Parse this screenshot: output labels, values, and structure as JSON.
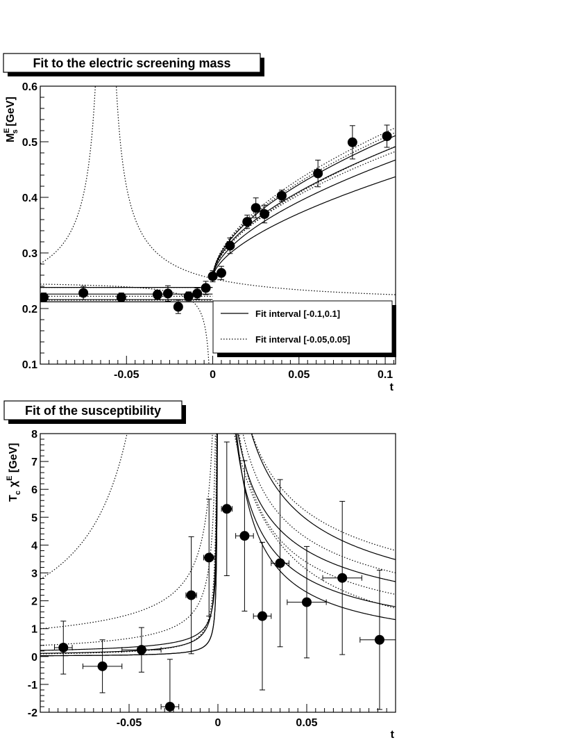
{
  "chart_data": [
    {
      "type": "scatter",
      "title": "Fit to the electric screening mass",
      "xlabel": "t",
      "ylabel_main": "M",
      "ylabel_sup": "E",
      "ylabel_sub": "s",
      "ylabel_rest": " [GeV]",
      "xlim": [
        -0.1,
        0.106
      ],
      "ylim": [
        0.1,
        0.6
      ],
      "xticks": [
        -0.05,
        0,
        0.05,
        0.1
      ],
      "xtick_labels": [
        "-0.05",
        "0",
        "0.05",
        "0.1"
      ],
      "yticks": [
        0.1,
        0.2,
        0.3,
        0.4,
        0.5,
        0.6
      ],
      "ytick_labels": [
        "0.1",
        "0.2",
        "0.3",
        "0.4",
        "0.5",
        "0.6"
      ],
      "legend_position": "bottom-right",
      "legend": [
        {
          "label": "Fit interval [-0.1,0.1]",
          "style": "solid"
        },
        {
          "label": "Fit interval [-0.05,0.05]",
          "style": "dotted"
        }
      ],
      "points": [
        {
          "x": -0.098,
          "y": 0.22,
          "yerr": 0.008,
          "xerr": 0
        },
        {
          "x": -0.075,
          "y": 0.228,
          "yerr": 0.012,
          "xerr": 0
        },
        {
          "x": -0.053,
          "y": 0.22,
          "yerr": 0.008,
          "xerr": 0
        },
        {
          "x": -0.032,
          "y": 0.225,
          "yerr": 0.008,
          "xerr": 0
        },
        {
          "x": -0.026,
          "y": 0.227,
          "yerr": 0.014,
          "xerr": 0
        },
        {
          "x": -0.02,
          "y": 0.203,
          "yerr": 0.012,
          "xerr": 0
        },
        {
          "x": -0.014,
          "y": 0.222,
          "yerr": 0.008,
          "xerr": 0
        },
        {
          "x": -0.009,
          "y": 0.227,
          "yerr": 0.01,
          "xerr": 0
        },
        {
          "x": -0.004,
          "y": 0.237,
          "yerr": 0.012,
          "xerr": 0
        },
        {
          "x": 0.0,
          "y": 0.258,
          "yerr": 0.01,
          "xerr": 0
        },
        {
          "x": 0.005,
          "y": 0.264,
          "yerr": 0.012,
          "xerr": 0
        },
        {
          "x": 0.01,
          "y": 0.313,
          "yerr": 0.014,
          "xerr": 0
        },
        {
          "x": 0.02,
          "y": 0.356,
          "yerr": 0.012,
          "xerr": 0
        },
        {
          "x": 0.025,
          "y": 0.381,
          "yerr": 0.018,
          "xerr": 0
        },
        {
          "x": 0.03,
          "y": 0.37,
          "yerr": 0.016,
          "xerr": 0
        },
        {
          "x": 0.04,
          "y": 0.403,
          "yerr": 0.01,
          "xerr": 0
        },
        {
          "x": 0.061,
          "y": 0.443,
          "yerr": 0.024,
          "xerr": 0
        },
        {
          "x": 0.081,
          "y": 0.499,
          "yerr": 0.03,
          "xerr": 0
        },
        {
          "x": 0.101,
          "y": 0.51,
          "yerr": 0.02,
          "xerr": 0
        }
      ],
      "curves": [
        {
          "style": "solid",
          "tc": 0.0,
          "left": [
            0.238,
            0.0,
            1.0
          ],
          "right": [
            0.255,
            0.9,
            0.56
          ]
        },
        {
          "style": "solid",
          "tc": 0.0,
          "left": [
            0.216,
            0.0,
            1.0
          ],
          "right": [
            0.255,
            0.83,
            0.56
          ]
        },
        {
          "style": "solid",
          "tc": 0.0,
          "left": [
            0.226,
            0.0,
            1.0
          ],
          "right": [
            0.255,
            0.78,
            0.58
          ]
        },
        {
          "style": "solid",
          "tc": 0.0,
          "left": [
            0.212,
            0.0,
            1.0
          ],
          "right": [
            0.255,
            0.7,
            0.6
          ]
        },
        {
          "style": "dotted",
          "tc": 0.0,
          "left": [
            0.238,
            0.0,
            1.0
          ],
          "right": [
            0.255,
            0.95,
            0.56
          ]
        },
        {
          "style": "dotted",
          "tc": 0.0,
          "left": [
            0.222,
            0.0,
            1.0
          ],
          "right": [
            0.255,
            0.92,
            0.56
          ]
        },
        {
          "style": "dotted",
          "tc": 0.0,
          "left": [
            0.215,
            0.0,
            1.0
          ],
          "right": [
            0.255,
            0.87,
            0.58
          ]
        },
        {
          "style": "dotted",
          "tc": 0.0,
          "left": [
            0.25,
            -0.00089,
            -0.84
          ],
          "right": [
            0.255,
            0.8,
            0.56
          ]
        },
        {
          "style": "dotted",
          "tc": -0.062,
          "left": [
            0.205,
            0.004,
            -0.9
          ],
          "right": [
            0.205,
            0.004,
            -0.9
          ]
        }
      ]
    },
    {
      "type": "scatter",
      "title": "Fit of the susceptibility",
      "xlabel": "t",
      "ylabel_main": "T",
      "ylabel_sub": "c",
      "ylabel_chi": "χ",
      "ylabel_sup": "E",
      "ylabel_rest": " [GeV]",
      "xlim": [
        -0.1,
        0.1
      ],
      "ylim": [
        -2,
        8
      ],
      "xticks": [
        -0.05,
        0,
        0.05
      ],
      "xtick_labels": [
        "-0.05",
        "0",
        "0.05"
      ],
      "yticks": [
        -2,
        -1,
        0,
        1,
        2,
        3,
        4,
        5,
        6,
        7,
        8
      ],
      "ytick_labels": [
        "-2",
        "-1",
        "0",
        "1",
        "2",
        "3",
        "4",
        "5",
        "6",
        "7",
        "8"
      ],
      "points": [
        {
          "x": -0.087,
          "y": 0.32,
          "yerr": 0.95,
          "xerr": 0.005
        },
        {
          "x": -0.065,
          "y": -0.35,
          "yerr": 0.95,
          "xerr": 0.011
        },
        {
          "x": -0.043,
          "y": 0.24,
          "yerr": 0.8,
          "xerr": 0.011
        },
        {
          "x": -0.027,
          "y": -1.8,
          "yerr": 1.7,
          "xerr": 0.005
        },
        {
          "x": -0.015,
          "y": 2.2,
          "yerr": 2.1,
          "xerr": 0.003
        },
        {
          "x": -0.005,
          "y": 3.55,
          "yerr": 2.1,
          "xerr": 0.003
        },
        {
          "x": 0.005,
          "y": 5.3,
          "yerr": 2.4,
          "xerr": 0.003
        },
        {
          "x": 0.015,
          "y": 4.33,
          "yerr": 2.7,
          "xerr": 0.005
        },
        {
          "x": 0.025,
          "y": 1.45,
          "yerr": 2.65,
          "xerr": 0.005
        },
        {
          "x": 0.035,
          "y": 3.35,
          "yerr": 3.0,
          "xerr": 0.005
        },
        {
          "x": 0.05,
          "y": 1.95,
          "yerr": 2.0,
          "xerr": 0.011
        },
        {
          "x": 0.07,
          "y": 2.82,
          "yerr": 2.75,
          "xerr": 0.011
        },
        {
          "x": 0.091,
          "y": 0.6,
          "yerr": 2.5,
          "xerr": 0.011
        }
      ],
      "curves": [
        {
          "style": "solid",
          "tc": 0.0,
          "left": [
            0.0,
            0.055,
            -0.6
          ],
          "right": [
            0.0,
            1.1,
            -0.5
          ]
        },
        {
          "style": "solid",
          "tc": 0.0,
          "left": [
            0.0,
            0.018,
            -0.8
          ],
          "right": [
            0.0,
            0.85,
            -0.5
          ]
        },
        {
          "style": "solid",
          "tc": 0.0,
          "left": [
            0.0,
            0.0028,
            -1.0
          ],
          "right": [
            0.0,
            0.4,
            -0.65
          ]
        },
        {
          "style": "solid",
          "tc": 0.0,
          "left": [
            0.0,
            0.0028,
            -1.0
          ],
          "right": [
            0.0,
            0.21,
            -0.8
          ]
        },
        {
          "style": "dotted",
          "tc": 0.0,
          "left": [
            0.0,
            0.25,
            -0.6
          ],
          "right": [
            0.0,
            1.35,
            -0.45
          ]
        },
        {
          "style": "dotted",
          "tc": 0.0,
          "left": [
            0.0,
            0.08,
            -0.7
          ],
          "right": [
            0.0,
            0.95,
            -0.5
          ]
        },
        {
          "style": "dotted",
          "tc": 0.0,
          "left": [
            0.0,
            0.012,
            -0.9
          ],
          "right": [
            0.0,
            0.56,
            -0.6
          ]
        },
        {
          "style": "dotted",
          "tc": -0.021,
          "left": [
            0.0,
            0.17,
            -1.1
          ],
          "right": [
            0.0,
            0.17,
            -1.1
          ]
        }
      ]
    }
  ]
}
